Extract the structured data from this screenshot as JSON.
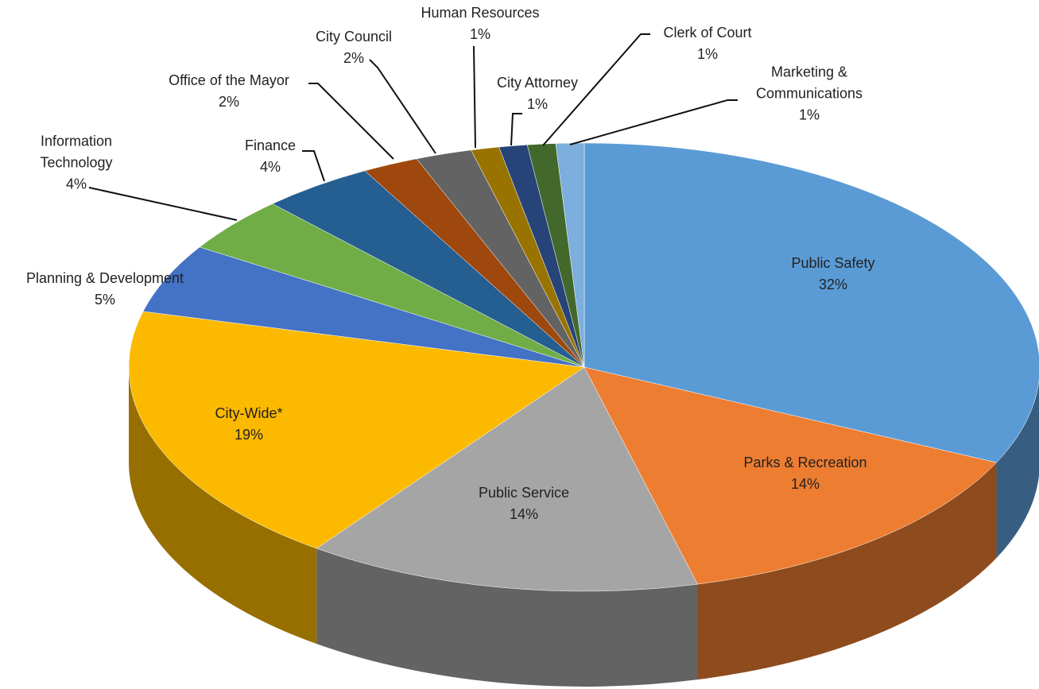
{
  "chart_data": {
    "type": "pie3d",
    "categories": [
      "Public Safety",
      "Parks & Recreation",
      "Public Service",
      "City-Wide*",
      "Planning & Development",
      "Information Technology",
      "Finance",
      "Office of the Mayor",
      "City Council",
      "Human Resources",
      "City Attorney",
      "Clerk of Court",
      "Marketing & Communications"
    ],
    "values": [
      32,
      14,
      14,
      19,
      5,
      4,
      4,
      2,
      2,
      1,
      1,
      1,
      1
    ],
    "value_labels": [
      "32%",
      "14%",
      "14%",
      "19%",
      "5%",
      "4%",
      "4%",
      "2%",
      "2%",
      "1%",
      "1%",
      "1%",
      "1%"
    ],
    "colors": [
      "#5b9bd5",
      "#ed7d31",
      "#a5a5a5",
      "#fbb900",
      "#4472c4",
      "#70ad47",
      "#255e91",
      "#9e480e",
      "#636363",
      "#997300",
      "#264478",
      "#43682b",
      "#7cafdd"
    ]
  }
}
